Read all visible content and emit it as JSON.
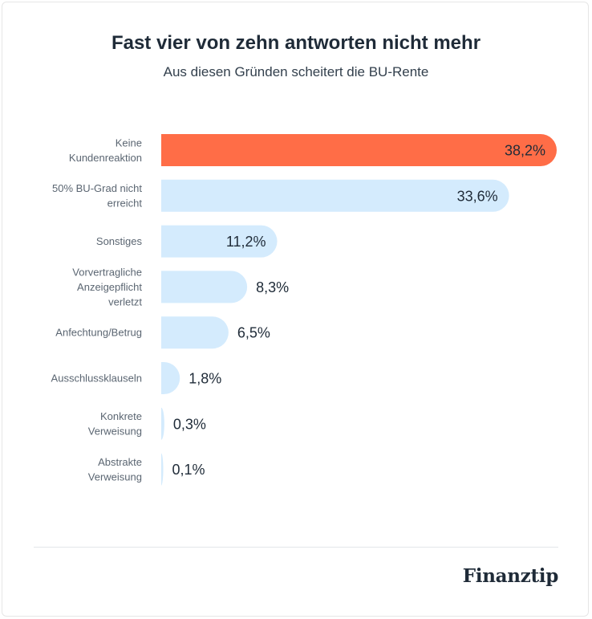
{
  "header": {
    "title": "Fast vier von zehn antworten nicht mehr",
    "subtitle": "Aus diesen Gründen scheitert die BU-Rente"
  },
  "brand": {
    "logo_text": "Finanztip"
  },
  "colors": {
    "highlight": "#ff6d47",
    "bar": "#d4ebfd",
    "text_dark": "#1f2b38",
    "text_muted": "#5b6672"
  },
  "chart_data": {
    "type": "bar",
    "orientation": "horizontal",
    "title": "Fast vier von zehn antworten nicht mehr",
    "subtitle": "Aus diesen Gründen scheitert die BU-Rente",
    "categories": [
      [
        "Keine",
        "Kundenreaktion"
      ],
      [
        "50% BU-Grad nicht",
        "erreicht"
      ],
      [
        "Sonstiges"
      ],
      [
        "Vorvertragliche",
        "Anzeigepflicht",
        "verletzt"
      ],
      [
        "Anfechtung/Betrug"
      ],
      [
        "Ausschlussklauseln"
      ],
      [
        "Konkrete",
        "Verweisung"
      ],
      [
        "Abstrakte",
        "Verweisung"
      ]
    ],
    "values": [
      38.2,
      33.6,
      11.2,
      8.3,
      6.5,
      1.8,
      0.3,
      0.1
    ],
    "value_labels": [
      "38,2%",
      "33,6%",
      "11,2%",
      "8,3%",
      "6,5%",
      "1,8%",
      "0,3%",
      "0,1%"
    ],
    "highlight_index": 0,
    "unit": "%",
    "xlim": [
      0,
      38.2
    ],
    "xlabel": "",
    "ylabel": "",
    "grid": false,
    "legend": "none"
  }
}
